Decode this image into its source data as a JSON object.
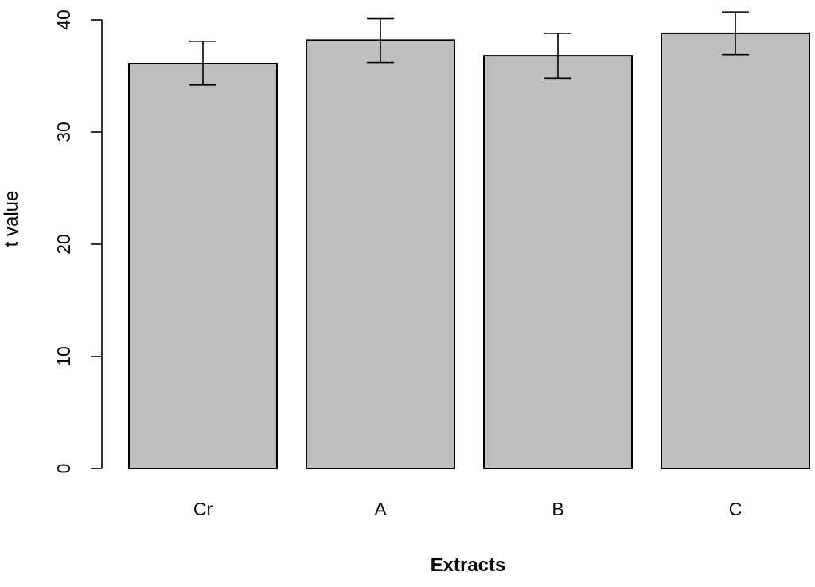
{
  "chart_data": {
    "type": "bar",
    "categories": [
      "Cr",
      "A",
      "B",
      "C"
    ],
    "values": [
      36.1,
      38.2,
      36.8,
      38.8
    ],
    "error_bars": {
      "lower": [
        34.2,
        36.2,
        34.8,
        36.9
      ],
      "upper": [
        38.1,
        40.1,
        38.8,
        40.7
      ]
    },
    "xlabel": "Extracts",
    "ylabel": "t value",
    "ylim": [
      0,
      40
    ],
    "y_ticks": [
      "0",
      "10",
      "20",
      "30",
      "40"
    ],
    "bar_color": "#bebebe",
    "grid": false,
    "legend": "none"
  }
}
